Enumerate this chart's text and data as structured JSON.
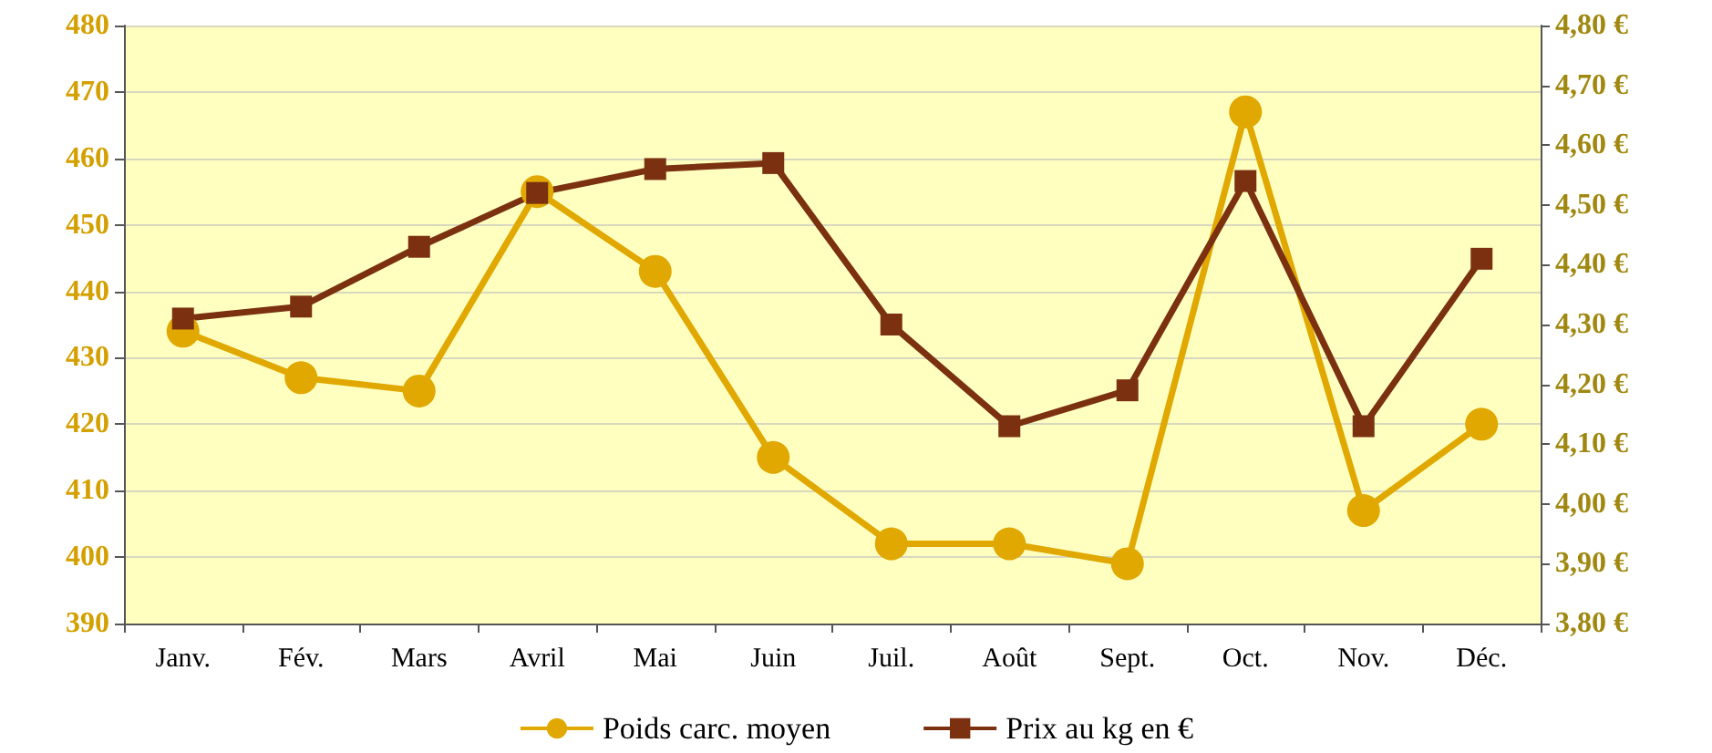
{
  "chart_data": {
    "type": "line",
    "categories": [
      "Janv.",
      "Fév.",
      "Mars",
      "Avril",
      "Mai",
      "Juin",
      "Juil.",
      "Août",
      "Sept.",
      "Oct.",
      "Nov.",
      "Déc."
    ],
    "series": [
      {
        "name": "Poids carc. moyen",
        "color": "#e0a800",
        "marker": "circle",
        "values": [
          434,
          427,
          425,
          455,
          443,
          415,
          402,
          402,
          399,
          467,
          407,
          420
        ]
      },
      {
        "name": "Prix au kg en €",
        "color": "#7b3010",
        "marker": "square",
        "axis": "y2",
        "values": [
          4.31,
          4.33,
          4.43,
          4.52,
          4.56,
          4.57,
          4.3,
          4.13,
          4.19,
          4.54,
          4.13,
          4.41
        ]
      }
    ],
    "ylim": [
      390,
      480
    ],
    "yticks": [
      390,
      400,
      410,
      420,
      430,
      440,
      450,
      460,
      470,
      480
    ],
    "y2lim": [
      3.8,
      4.8
    ],
    "y2ticks": [
      {
        "value": 3.8,
        "label": "3,80 €"
      },
      {
        "value": 3.9,
        "label": "3,90 €"
      },
      {
        "value": 4.0,
        "label": "4,00 €"
      },
      {
        "value": 4.1,
        "label": "4,10 €"
      },
      {
        "value": 4.2,
        "label": "4,20 €"
      },
      {
        "value": 4.3,
        "label": "4,30 €"
      },
      {
        "value": 4.4,
        "label": "4,40 €"
      },
      {
        "value": 4.5,
        "label": "4,50 €"
      },
      {
        "value": 4.6,
        "label": "4,60 €"
      },
      {
        "value": 4.7,
        "label": "4,70 €"
      },
      {
        "value": 4.8,
        "label": "4,80 €"
      }
    ],
    "grid": "y",
    "legend": "bottom",
    "line_style": "solid"
  }
}
